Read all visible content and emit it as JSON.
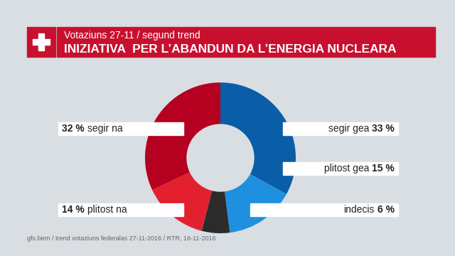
{
  "chart_data": {
    "type": "pie",
    "subtitle": "Votaziuns 27-11 / segund trend",
    "title": "INIZIATIVA  PER L’ABANDUN DA L’ENERGIA NUCLEARA",
    "categories": [
      "segir gea",
      "plitost gea",
      "indecis",
      "plitost na",
      "segir na"
    ],
    "values": [
      33,
      15,
      6,
      14,
      32
    ],
    "value_labels": [
      "33 %",
      "15 %",
      "6 %",
      "14 %",
      "32 %"
    ],
    "colors": [
      "#0a5ea8",
      "#1f8fe0",
      "#2b2b2b",
      "#e3202e",
      "#b5001f"
    ],
    "source": "gfs.bern / trend votaziuns federalas 27-11-2016 / RTR, 16-11-2016"
  }
}
